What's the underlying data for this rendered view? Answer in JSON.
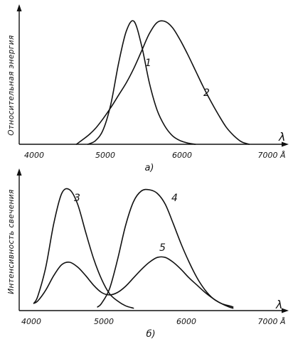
{
  "chart_data": [
    {
      "type": "line",
      "caption": "а)",
      "ylabel": "Относительная энергия",
      "xlabel": "λ",
      "x_ticks": [
        "4000",
        "5000",
        "6000",
        "7000 Å"
      ],
      "xlim": [
        4000,
        7100
      ],
      "ylim": [
        0,
        1.05
      ],
      "series": [
        {
          "name": "1",
          "x": [
            4700,
            4800,
            4900,
            5000,
            5100,
            5200,
            5300,
            5400,
            5500,
            5600,
            5700,
            5800,
            5900,
            6000,
            6100
          ],
          "y": [
            0.0,
            0.03,
            0.12,
            0.33,
            0.66,
            0.92,
            1.0,
            0.8,
            0.5,
            0.28,
            0.15,
            0.07,
            0.03,
            0.01,
            0.0
          ]
        },
        {
          "name": "2",
          "x": [
            4550,
            4700,
            4800,
            4900,
            5000,
            5100,
            5200,
            5300,
            5400,
            5500,
            5600,
            5700,
            5800,
            5900,
            6000,
            6100,
            6200,
            6300,
            6400,
            6500,
            6600,
            6700,
            6800
          ],
          "y": [
            0.0,
            0.07,
            0.13,
            0.21,
            0.3,
            0.4,
            0.5,
            0.62,
            0.76,
            0.9,
            0.99,
            1.0,
            0.95,
            0.85,
            0.73,
            0.6,
            0.47,
            0.35,
            0.24,
            0.14,
            0.07,
            0.02,
            0.0
          ]
        }
      ]
    },
    {
      "type": "line",
      "caption": "б)",
      "ylabel": "Интенсивность свечения",
      "xlabel": "λ",
      "x_ticks": [
        "4000",
        "5000",
        "6000",
        "7000 Å"
      ],
      "xlim": [
        4000,
        7100
      ],
      "ylim": [
        0,
        1.05
      ],
      "series": [
        {
          "name": "3",
          "x": [
            4050,
            4100,
            4200,
            4300,
            4400,
            4500,
            4600,
            4700,
            4800,
            4900,
            5000,
            5100,
            5200,
            5300
          ],
          "y": [
            0.06,
            0.12,
            0.36,
            0.72,
            0.97,
            1.0,
            0.88,
            0.65,
            0.43,
            0.26,
            0.14,
            0.08,
            0.04,
            0.02
          ]
        },
        {
          "name": "4",
          "x": [
            4850,
            4900,
            5000,
            5100,
            5200,
            5300,
            5400,
            5500,
            5600,
            5700,
            5800,
            5900,
            6000,
            6100,
            6200,
            6300,
            6400,
            6500,
            6550
          ],
          "y": [
            0.03,
            0.06,
            0.18,
            0.42,
            0.7,
            0.9,
            0.99,
            1.0,
            0.97,
            0.88,
            0.72,
            0.55,
            0.4,
            0.27,
            0.17,
            0.1,
            0.06,
            0.03,
            0.02
          ]
        },
        {
          "name": "5",
          "x": [
            4050,
            4100,
            4200,
            4300,
            4400,
            4500,
            4600,
            4700,
            4800,
            4900,
            5000,
            5100,
            5200,
            5300,
            5400,
            5500,
            5600,
            5700,
            5800,
            5900,
            6000,
            6100,
            6200,
            6300,
            6400,
            6500,
            6550
          ],
          "y": [
            0.06,
            0.08,
            0.17,
            0.29,
            0.38,
            0.4,
            0.36,
            0.29,
            0.21,
            0.15,
            0.13,
            0.15,
            0.2,
            0.27,
            0.34,
            0.4,
            0.44,
            0.44,
            0.4,
            0.34,
            0.27,
            0.21,
            0.15,
            0.1,
            0.06,
            0.04,
            0.03
          ]
        }
      ]
    }
  ]
}
